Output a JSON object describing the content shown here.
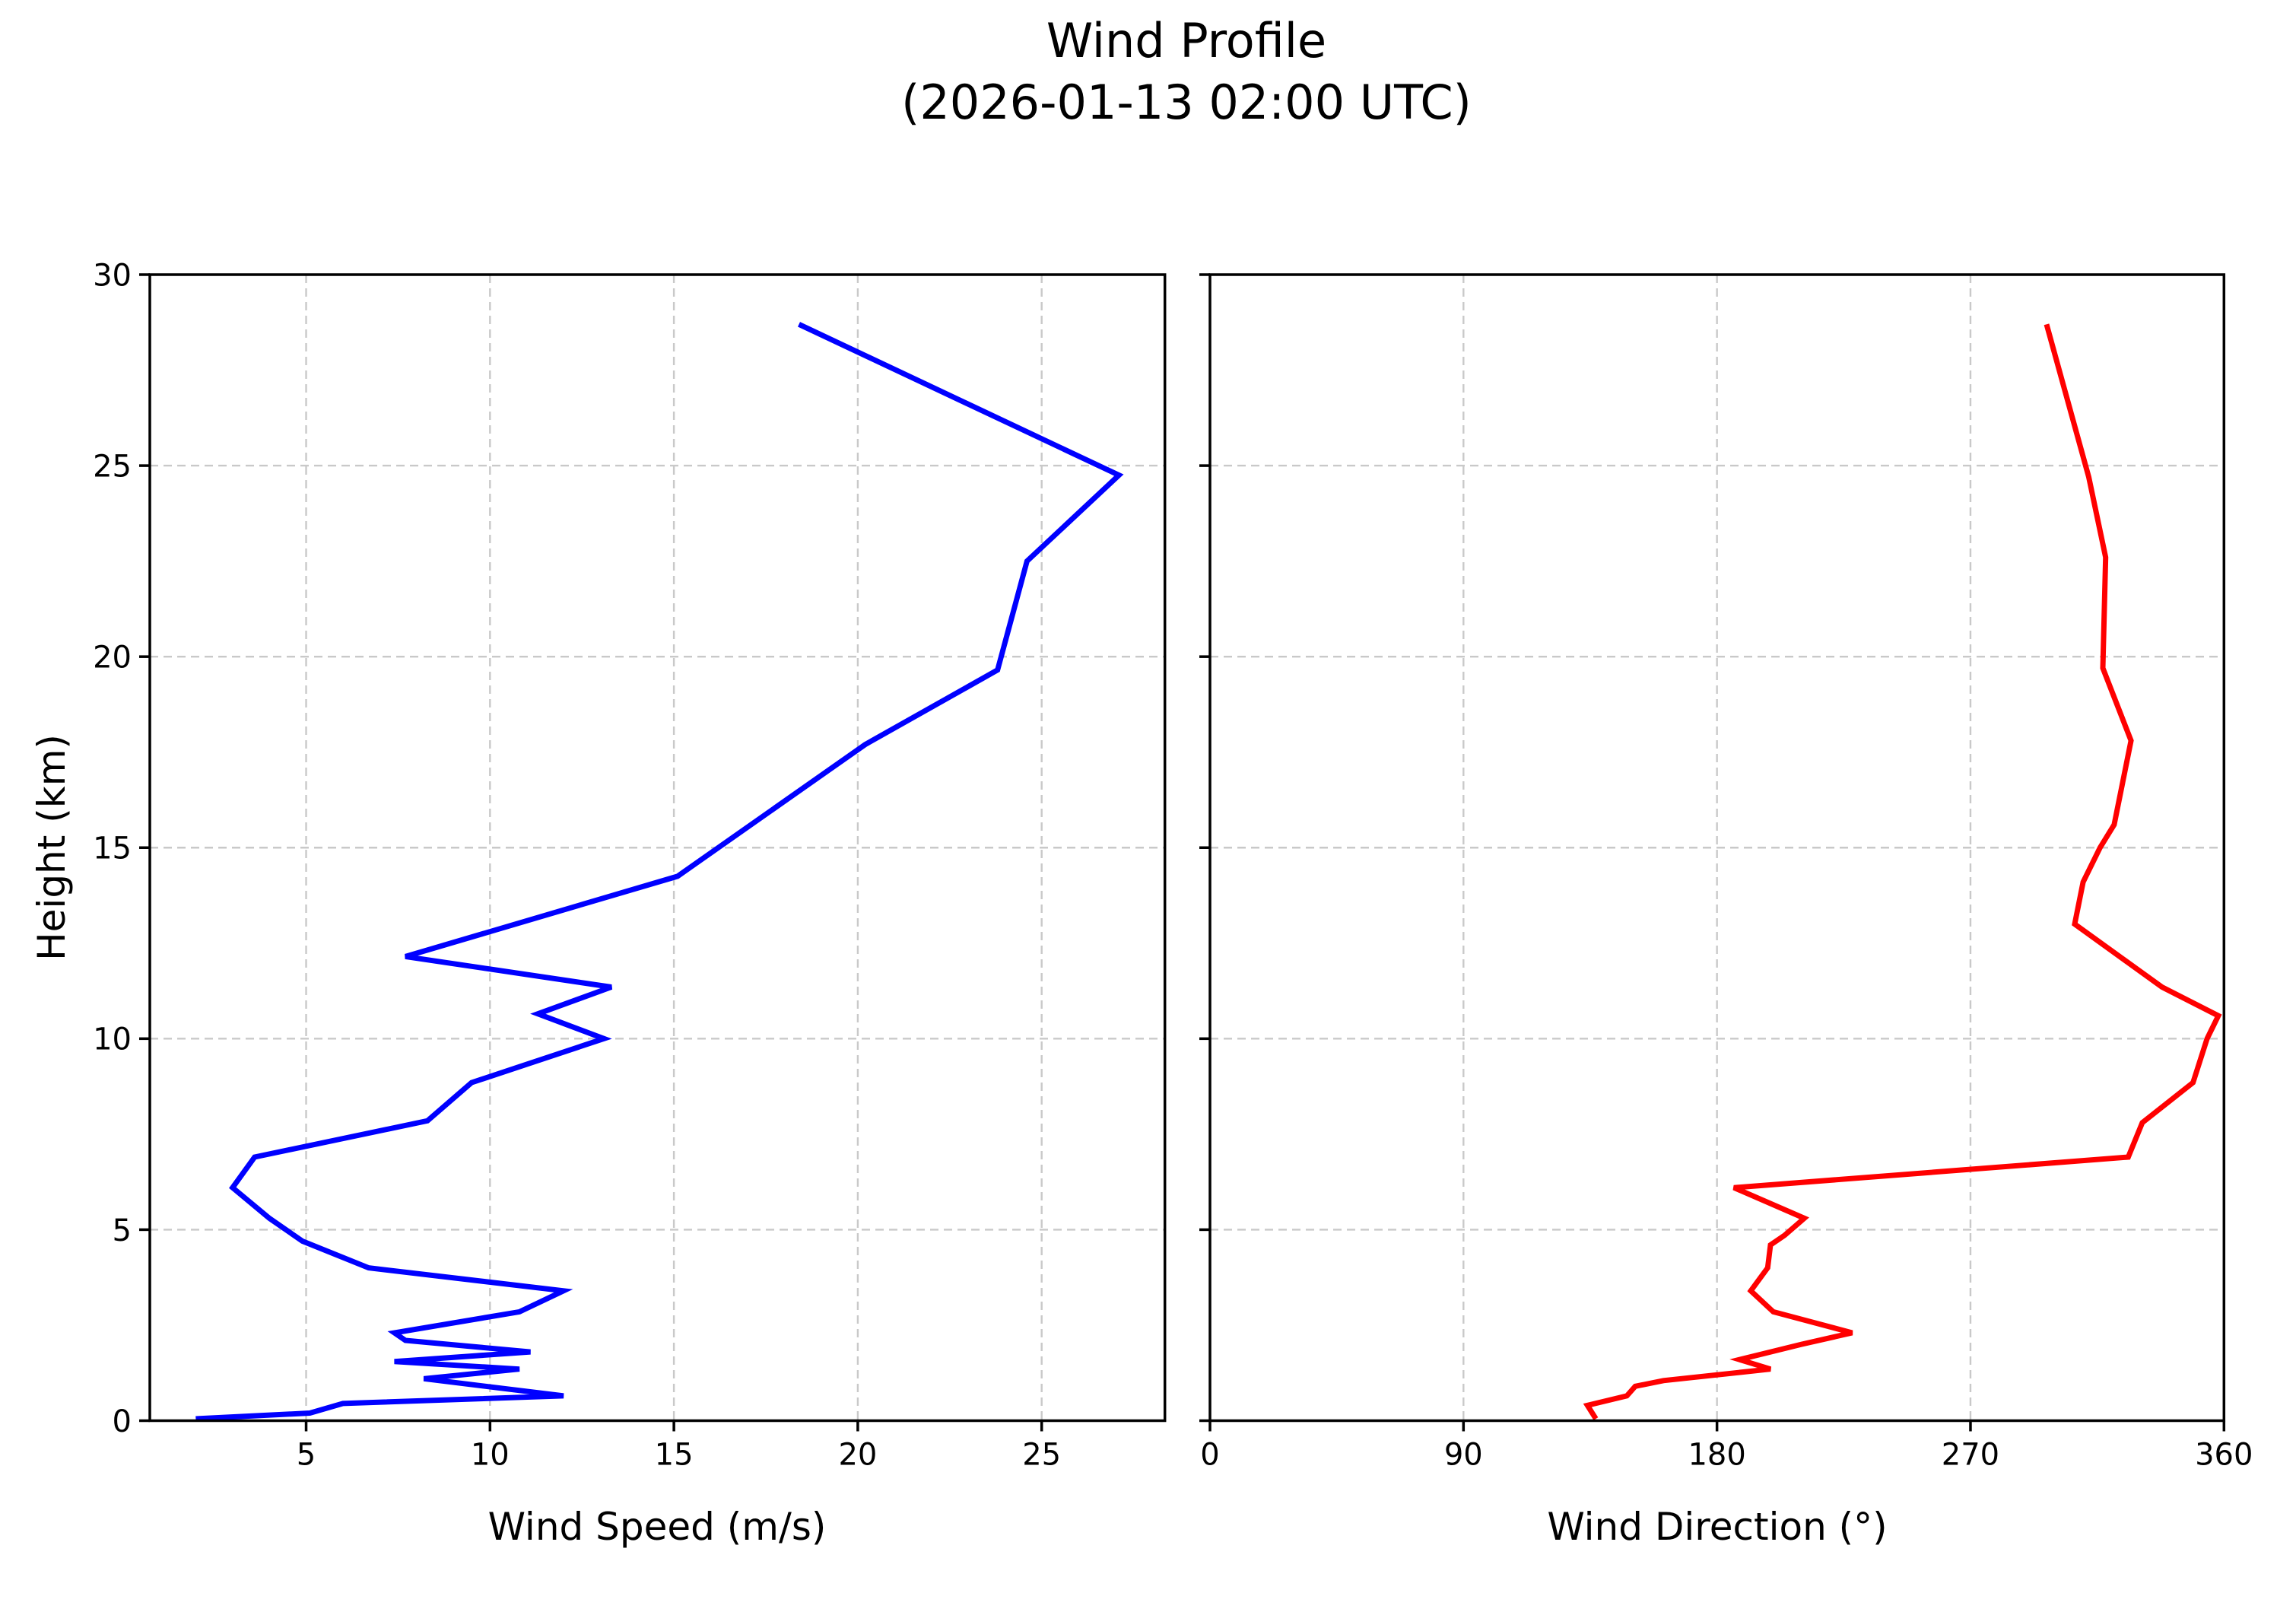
{
  "title": {
    "line1": "Wind Profile",
    "line2": "(2026-01-13 02:00 UTC)"
  },
  "chart_data": {
    "type": "line",
    "title": "Wind Profile (2026-01-13 02:00 UTC)",
    "ylabel": "Height (km)",
    "ylim": [
      0,
      30
    ],
    "yticks": [
      0,
      5,
      10,
      15,
      20,
      25,
      30
    ],
    "grid": true,
    "grid_linestyle": "dashed",
    "grid_color": "#c9c9c9",
    "spine_color": "#000000",
    "tick_label_color": "#000000",
    "panels": [
      {
        "id": "wind_speed",
        "xlabel": "Wind Speed (m/s)",
        "line_color": "#0000ff",
        "xlim": [
          0.75,
          28.35
        ],
        "xticks": [
          5,
          10,
          15,
          20,
          25
        ],
        "heights_km": [
          0.05,
          0.2,
          0.45,
          0.65,
          1.1,
          1.35,
          1.55,
          1.8,
          2.1,
          2.3,
          2.85,
          3.4,
          4.0,
          4.7,
          5.3,
          6.1,
          6.9,
          7.85,
          8.85,
          10.0,
          10.65,
          11.35,
          12.15,
          14.25,
          17.7,
          19.65,
          22.5,
          24.75,
          28.7
        ],
        "values": [
          2.0,
          5.1,
          6.0,
          12.0,
          8.2,
          10.8,
          7.4,
          11.1,
          7.7,
          7.4,
          10.8,
          12.0,
          6.7,
          4.9,
          4.0,
          3.0,
          3.6,
          8.3,
          9.5,
          13.1,
          11.3,
          13.3,
          7.7,
          15.1,
          20.2,
          23.8,
          24.6,
          27.1,
          18.4
        ]
      },
      {
        "id": "wind_direction",
        "xlabel": "Wind Direction (°)",
        "line_color": "#ff0000",
        "xlim": [
          0,
          360
        ],
        "xticks": [
          0,
          90,
          180,
          270,
          360
        ],
        "heights_km": [
          0.05,
          0.4,
          0.65,
          0.9,
          1.05,
          1.35,
          1.6,
          2.0,
          2.3,
          2.85,
          3.4,
          4.0,
          4.6,
          4.85,
          5.3,
          6.1,
          6.9,
          7.8,
          8.85,
          10.0,
          10.6,
          11.35,
          13.0,
          14.1,
          15.0,
          15.6,
          17.8,
          19.7,
          22.6,
          24.7,
          28.7
        ],
        "values": [
          137,
          134,
          148,
          151,
          161,
          199,
          188,
          210,
          228,
          200,
          192,
          198,
          199,
          204,
          211,
          186,
          326,
          331,
          349,
          354,
          358,
          338,
          307,
          310,
          316,
          321,
          327,
          317,
          318,
          312,
          297
        ]
      }
    ]
  }
}
